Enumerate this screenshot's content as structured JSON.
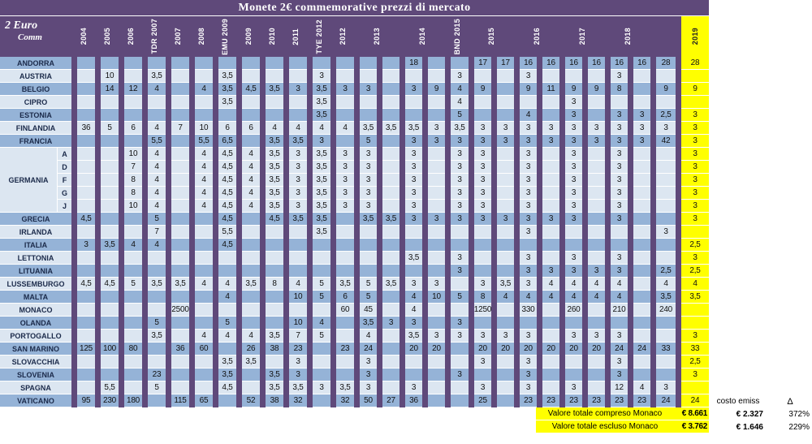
{
  "title": "Monete 2€ commemorative prezzi di mercato",
  "corner": {
    "line1": "2 Euro",
    "line2": "Comm"
  },
  "colors": {
    "purple": "#5F497A",
    "row_dark": "#95B3D7",
    "row_light": "#DCE6F1",
    "highlight": "#FFFF00"
  },
  "year_columns": [
    {
      "label": "2004",
      "span": 1
    },
    {
      "label": "2005",
      "span": 1
    },
    {
      "label": "2006",
      "span": 1
    },
    {
      "label": "TDR 2007",
      "span": 1
    },
    {
      "label": "2007",
      "span": 1
    },
    {
      "label": "2008",
      "span": 1
    },
    {
      "label": "EMU 2009",
      "span": 1
    },
    {
      "label": "2009",
      "span": 1
    },
    {
      "label": "2010",
      "span": 1
    },
    {
      "label": "2011",
      "span": 1
    },
    {
      "label": "TYE 2012",
      "span": 1
    },
    {
      "label": "2012",
      "span": 1
    },
    {
      "label": "2013",
      "span": 2
    },
    {
      "label": "2014",
      "span": 2
    },
    {
      "label": "BND 2015",
      "span": 1
    },
    {
      "label": "2015",
      "span": 2
    },
    {
      "label": "2016",
      "span": 2
    },
    {
      "label": "2017",
      "span": 2
    },
    {
      "label": "2018",
      "span": 2
    },
    {
      "label": "",
      "span": 1
    },
    {
      "label": "2019",
      "span": 1,
      "highlight": true
    }
  ],
  "rows": [
    {
      "name": "ANDORRA",
      "shade": "dark",
      "cells": [
        "",
        "",
        "",
        "",
        "",
        "",
        "",
        "",
        "",
        "",
        "",
        "",
        "",
        "",
        "18",
        "",
        "",
        "17",
        "17",
        "16",
        "16",
        "16",
        "16",
        "16",
        "16",
        "28",
        "28"
      ]
    },
    {
      "name": "AUSTRIA",
      "shade": "light",
      "cells": [
        "",
        "10",
        "",
        "3,5",
        "",
        "",
        "3,5",
        "",
        "",
        "",
        "3",
        "",
        "",
        "",
        "",
        "",
        "3",
        "",
        "",
        "3",
        "",
        "",
        "",
        "3",
        "",
        "",
        ""
      ]
    },
    {
      "name": "BELGIO",
      "shade": "dark",
      "cells": [
        "",
        "14",
        "12",
        "4",
        "",
        "4",
        "3,5",
        "4,5",
        "3,5",
        "3",
        "3,5",
        "3",
        "3",
        "",
        "3",
        "9",
        "4",
        "9",
        "",
        "9",
        "11",
        "9",
        "9",
        "8",
        "",
        "9",
        "9"
      ]
    },
    {
      "name": "CIPRO",
      "shade": "light",
      "cells": [
        "",
        "",
        "",
        "",
        "",
        "",
        "3,5",
        "",
        "",
        "",
        "3,5",
        "",
        "",
        "",
        "",
        "",
        "4",
        "",
        "",
        "",
        "",
        "3",
        "",
        "",
        "",
        "",
        ""
      ]
    },
    {
      "name": "ESTONIA",
      "shade": "dark",
      "cells": [
        "",
        "",
        "",
        "",
        "",
        "",
        "",
        "",
        "",
        "",
        "3,5",
        "",
        "",
        "",
        "",
        "",
        "5",
        "",
        "",
        "4",
        "",
        "3",
        "",
        "3",
        "3",
        "2,5",
        "3"
      ]
    },
    {
      "name": "FINLANDIA",
      "shade": "light",
      "cells": [
        "36",
        "5",
        "6",
        "4",
        "7",
        "10",
        "6",
        "6",
        "4",
        "4",
        "4",
        "4",
        "3,5",
        "3,5",
        "3,5",
        "3",
        "3,5",
        "3",
        "3",
        "3",
        "3",
        "3",
        "3",
        "3",
        "3",
        "3",
        "3"
      ]
    },
    {
      "name": "FRANCIA",
      "shade": "dark",
      "cells": [
        "",
        "",
        "",
        "5,5",
        "",
        "5,5",
        "6,5",
        "",
        "3,5",
        "3,5",
        "3",
        "",
        "5",
        "",
        "3",
        "3",
        "3",
        "3",
        "3",
        "3",
        "3",
        "3",
        "3",
        "3",
        "3",
        "42",
        "3"
      ]
    },
    {
      "name": "GERMANIA",
      "sub": "A",
      "show_name": false,
      "shade": "light",
      "cells": [
        "",
        "",
        "10",
        "4",
        "",
        "4",
        "4,5",
        "4",
        "3,5",
        "3",
        "3,5",
        "3",
        "3",
        "",
        "3",
        "",
        "3",
        "3",
        "",
        "3",
        "",
        "3",
        "",
        "3",
        "",
        "",
        "3"
      ]
    },
    {
      "name": "GERMANIA",
      "sub": "D",
      "show_name": false,
      "shade": "light",
      "cells": [
        "",
        "",
        "7",
        "4",
        "",
        "4",
        "4,5",
        "4",
        "3,5",
        "3",
        "3,5",
        "3",
        "3",
        "",
        "3",
        "",
        "3",
        "3",
        "",
        "3",
        "",
        "3",
        "",
        "3",
        "",
        "",
        "3"
      ]
    },
    {
      "name": "GERMANIA",
      "sub": "F",
      "show_name": true,
      "shade": "light",
      "cells": [
        "",
        "",
        "8",
        "4",
        "",
        "4",
        "4,5",
        "4",
        "3,5",
        "3",
        "3,5",
        "3",
        "3",
        "",
        "3",
        "",
        "3",
        "3",
        "",
        "3",
        "",
        "3",
        "",
        "3",
        "",
        "",
        "3"
      ]
    },
    {
      "name": "GERMANIA",
      "sub": "G",
      "show_name": false,
      "shade": "light",
      "cells": [
        "",
        "",
        "8",
        "4",
        "",
        "4",
        "4,5",
        "4",
        "3,5",
        "3",
        "3,5",
        "3",
        "3",
        "",
        "3",
        "",
        "3",
        "3",
        "",
        "3",
        "",
        "3",
        "",
        "3",
        "",
        "",
        "3"
      ]
    },
    {
      "name": "GERMANIA",
      "sub": "J",
      "show_name": false,
      "shade": "light",
      "cells": [
        "",
        "",
        "10",
        "4",
        "",
        "4",
        "4,5",
        "4",
        "3,5",
        "3",
        "3,5",
        "3",
        "3",
        "",
        "3",
        "",
        "3",
        "3",
        "",
        "3",
        "",
        "3",
        "",
        "3",
        "",
        "",
        "3"
      ]
    },
    {
      "name": "GRECIA",
      "shade": "dark",
      "cells": [
        "4,5",
        "",
        "",
        "5",
        "",
        "",
        "4,5",
        "",
        "4,5",
        "3,5",
        "3,5",
        "",
        "3,5",
        "3,5",
        "3",
        "3",
        "3",
        "3",
        "3",
        "3",
        "3",
        "3",
        "",
        "3",
        "",
        "",
        "3"
      ]
    },
    {
      "name": "IRLANDA",
      "shade": "light",
      "cells": [
        "",
        "",
        "",
        "7",
        "",
        "",
        "5,5",
        "",
        "",
        "",
        "3,5",
        "",
        "",
        "",
        "",
        "",
        "",
        "",
        "",
        "3",
        "",
        "",
        "",
        "",
        "",
        "3",
        ""
      ]
    },
    {
      "name": "ITALIA",
      "shade": "dark",
      "cells": [
        "3",
        "3,5",
        "4",
        "4",
        "",
        "",
        "4,5",
        "",
        "",
        "",
        "",
        "",
        "",
        "",
        "",
        "",
        "",
        "",
        "",
        "",
        "",
        "",
        "",
        "",
        "",
        "",
        "2,5"
      ]
    },
    {
      "name": "LETTONIA",
      "shade": "light",
      "cells": [
        "",
        "",
        "",
        "",
        "",
        "",
        "",
        "",
        "",
        "",
        "",
        "",
        "",
        "",
        "3,5",
        "",
        "3",
        "",
        "",
        "3",
        "",
        "3",
        "",
        "3",
        "",
        "",
        "3"
      ]
    },
    {
      "name": "LITUANIA",
      "shade": "dark",
      "cells": [
        "",
        "",
        "",
        "",
        "",
        "",
        "",
        "",
        "",
        "",
        "",
        "",
        "",
        "",
        "",
        "",
        "3",
        "",
        "",
        "3",
        "3",
        "3",
        "3",
        "3",
        "",
        "2,5",
        "2,5"
      ]
    },
    {
      "name": "LUSSEMBURGO",
      "shade": "light",
      "cells": [
        "4,5",
        "4,5",
        "5",
        "3,5",
        "3,5",
        "4",
        "4",
        "3,5",
        "8",
        "4",
        "5",
        "3,5",
        "5",
        "3,5",
        "3",
        "3",
        "",
        "3",
        "3,5",
        "3",
        "4",
        "4",
        "4",
        "4",
        "",
        "4",
        "4"
      ]
    },
    {
      "name": "MALTA",
      "shade": "dark",
      "cells": [
        "",
        "",
        "",
        "",
        "",
        "",
        "4",
        "",
        "",
        "10",
        "5",
        "6",
        "5",
        "",
        "4",
        "10",
        "5",
        "8",
        "4",
        "4",
        "4",
        "4",
        "4",
        "4",
        "",
        "3,5",
        "3,5"
      ]
    },
    {
      "name": "MONACO",
      "shade": "light",
      "cells": [
        "",
        "",
        "",
        "",
        "2500",
        "",
        "",
        "",
        "",
        "",
        "",
        "60",
        "45",
        "",
        "4",
        "",
        "",
        "1250",
        "",
        "330",
        "",
        "260",
        "",
        "210",
        "",
        "240",
        ""
      ]
    },
    {
      "name": "OLANDA",
      "shade": "dark",
      "cells": [
        "",
        "",
        "",
        "5",
        "",
        "",
        "5",
        "",
        "",
        "10",
        "4",
        "",
        "3,5",
        "3",
        "3",
        "",
        "3",
        "",
        "",
        "",
        "",
        "",
        "",
        "",
        "",
        "",
        ""
      ]
    },
    {
      "name": "PORTOGALLO",
      "shade": "light",
      "cells": [
        "",
        "",
        "",
        "3,5",
        "",
        "4",
        "4",
        "4",
        "3,5",
        "7",
        "5",
        "",
        "4",
        "",
        "3,5",
        "3",
        "3",
        "3",
        "3",
        "3",
        "",
        "3",
        "3",
        "3",
        "",
        "",
        "3"
      ]
    },
    {
      "name": "SAN MARINO",
      "shade": "dark",
      "cells": [
        "125",
        "100",
        "80",
        "",
        "36",
        "60",
        "",
        "26",
        "38",
        "23",
        "",
        "23",
        "24",
        "",
        "20",
        "20",
        "",
        "20",
        "20",
        "20",
        "20",
        "20",
        "20",
        "24",
        "24",
        "33",
        "33"
      ]
    },
    {
      "name": "SLOVACCHIA",
      "shade": "light",
      "cells": [
        "",
        "",
        "",
        "",
        "",
        "",
        "3,5",
        "3,5",
        "",
        "3",
        "",
        "",
        "3",
        "",
        "",
        "",
        "",
        "3",
        "",
        "3",
        "",
        "",
        "",
        "3",
        "",
        "",
        "2,5"
      ]
    },
    {
      "name": "SLOVENIA",
      "shade": "dark",
      "cells": [
        "",
        "",
        "",
        "23",
        "",
        "",
        "3,5",
        "",
        "3,5",
        "3",
        "",
        "",
        "3",
        "",
        "",
        "",
        "3",
        "",
        "",
        "3",
        "",
        "",
        "",
        "3",
        "",
        "",
        "3"
      ]
    },
    {
      "name": "SPAGNA",
      "shade": "light",
      "cells": [
        "",
        "5,5",
        "",
        "5",
        "",
        "",
        "4,5",
        "",
        "3,5",
        "3,5",
        "3",
        "3,5",
        "3",
        "",
        "3",
        "",
        "",
        "3",
        "",
        "3",
        "",
        "3",
        "",
        "12",
        "4",
        "3",
        ""
      ]
    },
    {
      "name": "VATICANO",
      "shade": "dark",
      "cells": [
        "95",
        "230",
        "180",
        "",
        "115",
        "65",
        "",
        "52",
        "38",
        "32",
        "",
        "32",
        "50",
        "27",
        "36",
        "",
        "",
        "25",
        "",
        "23",
        "23",
        "23",
        "23",
        "23",
        "23",
        "24",
        "24"
      ]
    }
  ],
  "summary": {
    "cost_header": "costo emiss",
    "delta_header": "Δ",
    "rows": [
      {
        "label": "Valore totale compreso Monaco",
        "total": "€ 8.661",
        "cost": "€ 2.327",
        "delta": "372%"
      },
      {
        "label": "Valore totale escluso Monaco",
        "total": "€ 3.762",
        "cost": "€ 1.646",
        "delta": "229%"
      }
    ]
  }
}
